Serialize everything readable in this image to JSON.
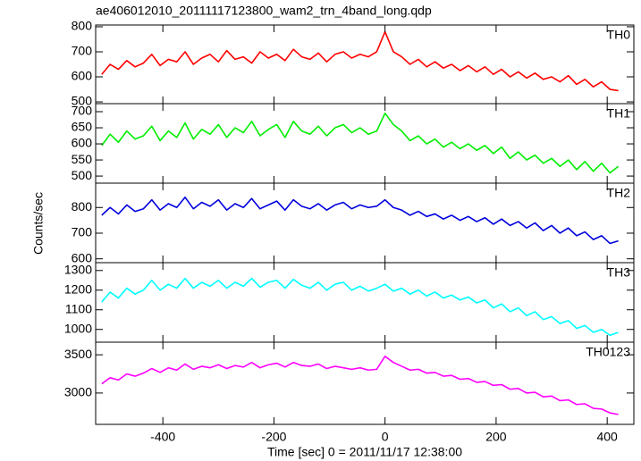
{
  "chart_data": [
    {
      "type": "line",
      "title": "ae406012010_20111117123800_wam2_trn_4band_long.qdp",
      "x": [
        -510,
        -495,
        -480,
        -465,
        -450,
        -435,
        -420,
        -405,
        -390,
        -375,
        -360,
        -345,
        -330,
        -315,
        -300,
        -285,
        -270,
        -255,
        -240,
        -225,
        -210,
        -195,
        -180,
        -165,
        -150,
        -135,
        -120,
        -105,
        -90,
        -75,
        -60,
        -45,
        -30,
        -15,
        0,
        15,
        30,
        45,
        60,
        75,
        90,
        105,
        120,
        135,
        150,
        165,
        180,
        195,
        210,
        225,
        240,
        255,
        270,
        285,
        300,
        315,
        330,
        345,
        360,
        375,
        390,
        405,
        420
      ],
      "series": [
        {
          "name": "TH0",
          "color": "#ff0000",
          "values": [
            610,
            650,
            630,
            665,
            640,
            655,
            690,
            645,
            670,
            660,
            700,
            650,
            675,
            690,
            660,
            705,
            670,
            680,
            655,
            700,
            675,
            690,
            665,
            710,
            680,
            670,
            695,
            660,
            690,
            700,
            675,
            690,
            680,
            700,
            780,
            700,
            680,
            650,
            670,
            640,
            660,
            635,
            650,
            625,
            645,
            620,
            640,
            610,
            630,
            600,
            620,
            595,
            615,
            590,
            600,
            580,
            605,
            570,
            590,
            560,
            580,
            550,
            545
          ]
        }
      ],
      "xlim": [
        -521,
        448
      ],
      "ylim": [
        493,
        807
      ],
      "yticks": [
        500,
        600,
        700,
        800
      ]
    },
    {
      "type": "line",
      "x": [
        -510,
        -495,
        -480,
        -465,
        -450,
        -435,
        -420,
        -405,
        -390,
        -375,
        -360,
        -345,
        -330,
        -315,
        -300,
        -285,
        -270,
        -255,
        -240,
        -225,
        -210,
        -195,
        -180,
        -165,
        -150,
        -135,
        -120,
        -105,
        -90,
        -75,
        -60,
        -45,
        -30,
        -15,
        0,
        15,
        30,
        45,
        60,
        75,
        90,
        105,
        120,
        135,
        150,
        165,
        180,
        195,
        210,
        225,
        240,
        255,
        270,
        285,
        300,
        315,
        330,
        345,
        360,
        375,
        390,
        405,
        420
      ],
      "series": [
        {
          "name": "TH1",
          "color": "#00ee00",
          "values": [
            595,
            630,
            605,
            640,
            615,
            625,
            655,
            610,
            640,
            620,
            665,
            615,
            645,
            630,
            660,
            620,
            650,
            635,
            670,
            625,
            645,
            660,
            620,
            670,
            640,
            630,
            655,
            625,
            650,
            660,
            635,
            650,
            630,
            640,
            695,
            660,
            640,
            610,
            625,
            600,
            615,
            590,
            605,
            585,
            600,
            580,
            595,
            570,
            590,
            555,
            575,
            550,
            565,
            540,
            555,
            530,
            550,
            520,
            545,
            515,
            540,
            510,
            530
          ]
        }
      ],
      "xlim": [
        -521,
        448
      ],
      "ylim": [
        478,
        725
      ],
      "yticks": [
        500,
        550,
        600,
        650,
        700
      ]
    },
    {
      "type": "line",
      "y_label": "Counts/sec",
      "x": [
        -510,
        -495,
        -480,
        -465,
        -450,
        -435,
        -420,
        -405,
        -390,
        -375,
        -360,
        -345,
        -330,
        -315,
        -300,
        -285,
        -270,
        -255,
        -240,
        -225,
        -210,
        -195,
        -180,
        -165,
        -150,
        -135,
        -120,
        -105,
        -90,
        -75,
        -60,
        -45,
        -30,
        -15,
        0,
        15,
        30,
        45,
        60,
        75,
        90,
        105,
        120,
        135,
        150,
        165,
        180,
        195,
        210,
        225,
        240,
        255,
        270,
        285,
        300,
        315,
        330,
        345,
        360,
        375,
        390,
        405,
        420
      ],
      "series": [
        {
          "name": "TH2",
          "color": "#0000dd",
          "values": [
            770,
            800,
            775,
            810,
            785,
            795,
            830,
            790,
            815,
            800,
            840,
            795,
            820,
            805,
            830,
            790,
            815,
            800,
            835,
            795,
            810,
            825,
            790,
            830,
            805,
            795,
            815,
            790,
            810,
            820,
            795,
            810,
            800,
            805,
            830,
            800,
            790,
            770,
            785,
            765,
            775,
            755,
            770,
            750,
            765,
            745,
            760,
            735,
            755,
            730,
            745,
            720,
            740,
            710,
            730,
            700,
            720,
            690,
            705,
            675,
            690,
            660,
            670
          ]
        }
      ],
      "xlim": [
        -521,
        448
      ],
      "ylim": [
        585,
        895
      ],
      "yticks": [
        600,
        700,
        800
      ]
    },
    {
      "type": "line",
      "x": [
        -510,
        -495,
        -480,
        -465,
        -450,
        -435,
        -420,
        -405,
        -390,
        -375,
        -360,
        -345,
        -330,
        -315,
        -300,
        -285,
        -270,
        -255,
        -240,
        -225,
        -210,
        -195,
        -180,
        -165,
        -150,
        -135,
        -120,
        -105,
        -90,
        -75,
        -60,
        -45,
        -30,
        -15,
        0,
        15,
        30,
        45,
        60,
        75,
        90,
        105,
        120,
        135,
        150,
        165,
        180,
        195,
        210,
        225,
        240,
        255,
        270,
        285,
        300,
        315,
        330,
        345,
        360,
        375,
        390,
        405,
        420
      ],
      "series": [
        {
          "name": "TH3",
          "color": "#00ffff",
          "values": [
            1140,
            1190,
            1160,
            1210,
            1180,
            1200,
            1250,
            1200,
            1230,
            1210,
            1260,
            1210,
            1240,
            1220,
            1250,
            1210,
            1240,
            1220,
            1260,
            1215,
            1240,
            1250,
            1210,
            1255,
            1225,
            1210,
            1240,
            1200,
            1230,
            1240,
            1200,
            1220,
            1195,
            1210,
            1230,
            1195,
            1210,
            1180,
            1200,
            1170,
            1190,
            1160,
            1175,
            1150,
            1165,
            1135,
            1150,
            1110,
            1130,
            1090,
            1110,
            1070,
            1090,
            1050,
            1065,
            1030,
            1045,
            1005,
            1020,
            985,
            1000,
            970,
            985
          ]
        }
      ],
      "xlim": [
        -521,
        448
      ],
      "ylim": [
        935,
        1340
      ],
      "yticks": [
        1000,
        1100,
        1200,
        1300
      ]
    },
    {
      "type": "line",
      "x_label": "Time [sec] 0 = 2011/11/17 12:38:00",
      "x": [
        -510,
        -495,
        -480,
        -465,
        -450,
        -435,
        -420,
        -405,
        -390,
        -375,
        -360,
        -345,
        -330,
        -315,
        -300,
        -285,
        -270,
        -255,
        -240,
        -225,
        -210,
        -195,
        -180,
        -165,
        -150,
        -135,
        -120,
        -105,
        -90,
        -75,
        -60,
        -45,
        -30,
        -15,
        0,
        15,
        30,
        45,
        60,
        75,
        90,
        105,
        120,
        135,
        150,
        165,
        180,
        195,
        210,
        225,
        240,
        255,
        270,
        285,
        300,
        315,
        330,
        345,
        360,
        375,
        390,
        405,
        420
      ],
      "series": [
        {
          "name": "TH0123",
          "color": "#ff00ff",
          "values": [
            3120,
            3200,
            3170,
            3250,
            3220,
            3260,
            3320,
            3270,
            3330,
            3300,
            3380,
            3310,
            3350,
            3330,
            3370,
            3320,
            3360,
            3340,
            3400,
            3330,
            3370,
            3390,
            3340,
            3400,
            3360,
            3350,
            3380,
            3320,
            3350,
            3330,
            3310,
            3330,
            3300,
            3310,
            3480,
            3400,
            3350,
            3300,
            3310,
            3260,
            3270,
            3220,
            3230,
            3180,
            3190,
            3140,
            3150,
            3100,
            3110,
            3050,
            3060,
            3000,
            3010,
            2950,
            2960,
            2900,
            2910,
            2850,
            2860,
            2800,
            2790,
            2740,
            2720
          ]
        }
      ],
      "xlim": [
        -521,
        448
      ],
      "ylim": [
        2590,
        3665
      ],
      "yticks": [
        3000,
        3500
      ],
      "xticks": [
        -400,
        -200,
        0,
        200,
        400
      ]
    }
  ]
}
